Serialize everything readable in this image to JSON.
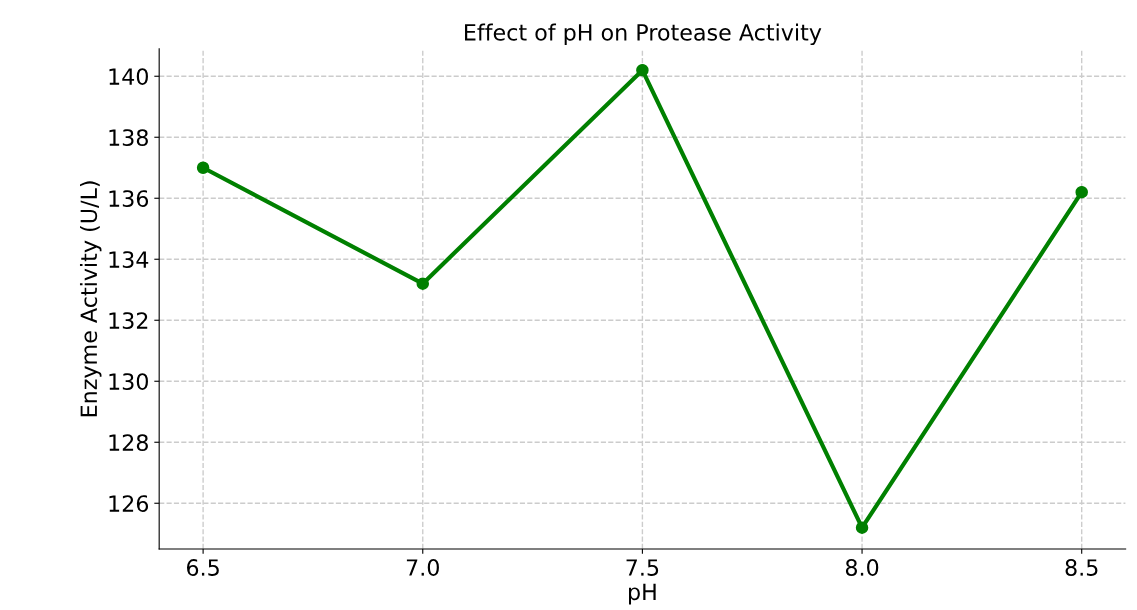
{
  "chart_data": {
    "type": "line",
    "title": "Effect of pH on Protease Activity",
    "xlabel": "pH",
    "ylabel": "Enzyme Activity (U/L)",
    "x": [
      6.5,
      7.0,
      7.5,
      8.0,
      8.5
    ],
    "series": [
      {
        "color": "#008000",
        "values": [
          137.0,
          133.2,
          140.2,
          125.2,
          136.2
        ]
      }
    ],
    "xlim": [
      6.4,
      8.6
    ],
    "xticks": [
      {
        "value": 6.5,
        "label": "6.5"
      },
      {
        "value": 7.0,
        "label": "7.0"
      },
      {
        "value": 7.5,
        "label": "7.5"
      },
      {
        "value": 8.0,
        "label": "8.0"
      },
      {
        "value": 8.5,
        "label": "8.5"
      }
    ],
    "ylim": [
      124.5,
      140.9
    ],
    "yticks": [
      126,
      128,
      130,
      132,
      134,
      136,
      138,
      140
    ],
    "grid": true,
    "marker": "circle",
    "line_style": "solid",
    "legend": false
  }
}
